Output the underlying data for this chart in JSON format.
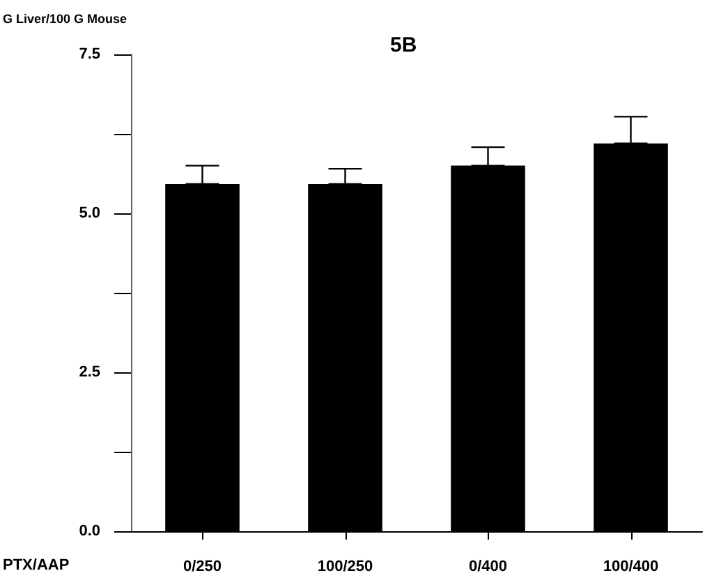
{
  "chart_data": {
    "type": "bar",
    "title": "5B",
    "xlabel": "PTX/AAP",
    "ylabel": "G Liver/100 G Mouse",
    "categories": [
      "0/250",
      "100/250",
      "0/400",
      "100/400"
    ],
    "series": [
      {
        "color": "#000000",
        "values": [
          5.46,
          5.46,
          5.75,
          6.1
        ],
        "errors": [
          [
            5.46,
            5.75
          ],
          [
            5.46,
            5.7
          ],
          [
            5.75,
            6.04
          ],
          [
            6.1,
            6.52
          ]
        ]
      }
    ],
    "ylim": [
      0,
      7.5
    ],
    "yticks": [
      {
        "value": 0,
        "label": "0.0"
      },
      {
        "value": 1.25,
        "label": null
      },
      {
        "value": 2.5,
        "label": "2.5"
      },
      {
        "value": 3.75,
        "label": null
      },
      {
        "value": 5,
        "label": "5.0"
      },
      {
        "value": 6.25,
        "label": null
      },
      {
        "value": 7.5,
        "label": "7.5"
      }
    ],
    "grid": false
  }
}
